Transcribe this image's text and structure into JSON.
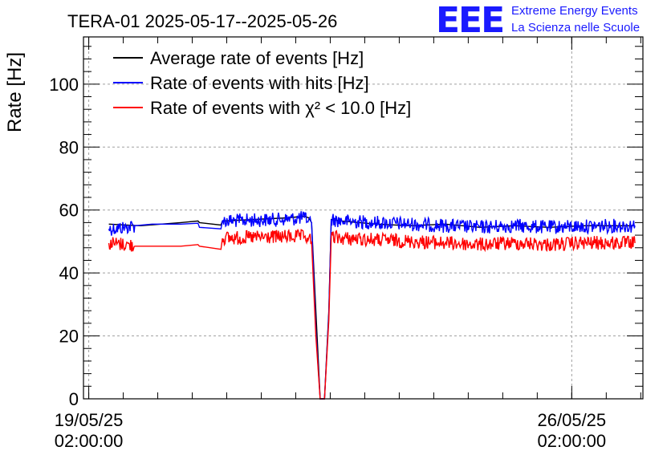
{
  "header": {
    "title": "TERA-01 2025-05-17--2025-05-26",
    "logo_text": "EEE",
    "logo_line1": "Extreme Energy Events",
    "logo_line2": "La Scienza nelle Scuole"
  },
  "colors": {
    "average": "#000000",
    "hits": "#0000ff",
    "chi2": "#ff0000",
    "grid": "#a0a0a0",
    "logo": "#1a1aff"
  },
  "chart_data": {
    "type": "line",
    "title": "TERA-01 2025-05-17--2025-05-26",
    "xlabel": "",
    "ylabel": "Rate [Hz]",
    "xlim": [
      "2025-05-19T00:10",
      "2025-05-27T02:45"
    ],
    "ylim": [
      0,
      115
    ],
    "grid": true,
    "legend_position": "top-left",
    "x_ticks": [
      {
        "date": "19/05/25",
        "time": "02:00:00",
        "value": "2025-05-19T02:00"
      },
      {
        "date": "26/05/25",
        "time": "02:00:00",
        "value": "2025-05-26T02:00"
      }
    ],
    "y_ticks": [
      0,
      20,
      40,
      60,
      80,
      100
    ],
    "series": [
      {
        "name": "Average rate of events [Hz]",
        "x": [
          "2025-05-19T09:00",
          "2025-05-19T20:00",
          "2025-05-20T10:00",
          "2025-05-20T16:00",
          "2025-05-20T16:30",
          "2025-05-21T00:00",
          "2025-05-21T00:30",
          "2025-05-21T23:00",
          "2025-05-22T05:00",
          "2025-05-22T06:30",
          "2025-05-22T07:30",
          "2025-05-22T09:00",
          "2025-05-22T10:30",
          "2025-05-22T12:00",
          "2025-05-22T13:30",
          "2025-05-22T14:20",
          "2025-05-22T18:00",
          "2025-05-23T06:00",
          "2025-05-23T18:00",
          "2025-05-24T06:00",
          "2025-05-24T18:00",
          "2025-05-25T06:00",
          "2025-05-25T18:00",
          "2025-05-26T06:00",
          "2025-05-26T18:00",
          "2025-05-27T00:00"
        ],
        "values": [
          55.5,
          55,
          56,
          56.5,
          56,
          55.2,
          56.5,
          57.5,
          58,
          57.5,
          56,
          28,
          0,
          0,
          28,
          57,
          56.5,
          55.5,
          55,
          55.5,
          54.5,
          55,
          54.5,
          55,
          55,
          55
        ]
      },
      {
        "name": "Rate of events with hits [Hz]",
        "x": [
          "2025-05-19T09:00",
          "2025-05-19T15:00",
          "2025-05-19T18:00",
          "2025-05-20T00:00",
          "2025-05-20T10:00",
          "2025-05-20T16:00",
          "2025-05-20T16:30",
          "2025-05-21T00:00",
          "2025-05-21T00:30",
          "2025-05-21T22:00",
          "2025-05-22T05:00",
          "2025-05-22T06:30",
          "2025-05-22T07:30",
          "2025-05-22T09:00",
          "2025-05-22T10:30",
          "2025-05-22T12:00",
          "2025-05-22T13:30",
          "2025-05-22T14:20",
          "2025-05-22T18:00",
          "2025-05-23T06:00",
          "2025-05-23T18:00",
          "2025-05-24T06:00",
          "2025-05-24T18:00",
          "2025-05-25T06:00",
          "2025-05-25T18:00",
          "2025-05-26T06:00",
          "2025-05-26T18:00",
          "2025-05-27T00:00"
        ],
        "values": [
          54,
          54.5,
          55,
          55.5,
          55.5,
          55.8,
          54.5,
          54,
          56.5,
          57,
          57.5,
          57,
          56,
          22,
          0,
          0,
          27,
          57,
          56.5,
          56,
          55.5,
          55,
          54.5,
          55,
          54.5,
          54.8,
          55,
          55
        ]
      },
      {
        "name": "Rate of events with χ² < 10.0 [Hz]",
        "x": [
          "2025-05-19T09:00",
          "2025-05-19T15:00",
          "2025-05-19T18:00",
          "2025-05-20T00:00",
          "2025-05-20T10:00",
          "2025-05-20T16:00",
          "2025-05-20T16:30",
          "2025-05-21T00:00",
          "2025-05-21T00:30",
          "2025-05-21T22:00",
          "2025-05-22T05:00",
          "2025-05-22T06:30",
          "2025-05-22T07:30",
          "2025-05-22T09:00",
          "2025-05-22T10:30",
          "2025-05-22T12:00",
          "2025-05-22T13:30",
          "2025-05-22T14:20",
          "2025-05-22T18:00",
          "2025-05-23T06:00",
          "2025-05-23T18:00",
          "2025-05-24T06:00",
          "2025-05-24T18:00",
          "2025-05-25T06:00",
          "2025-05-25T18:00",
          "2025-05-26T06:00",
          "2025-05-26T18:00",
          "2025-05-27T00:00"
        ],
        "values": [
          49.5,
          49,
          48.5,
          48.5,
          48.5,
          49,
          48.5,
          47.5,
          51,
          51.5,
          51.5,
          51,
          50,
          20,
          0,
          0,
          25,
          51.5,
          51,
          50.5,
          50,
          49.5,
          49,
          49.5,
          49,
          49.5,
          49.5,
          49.5
        ]
      }
    ]
  }
}
